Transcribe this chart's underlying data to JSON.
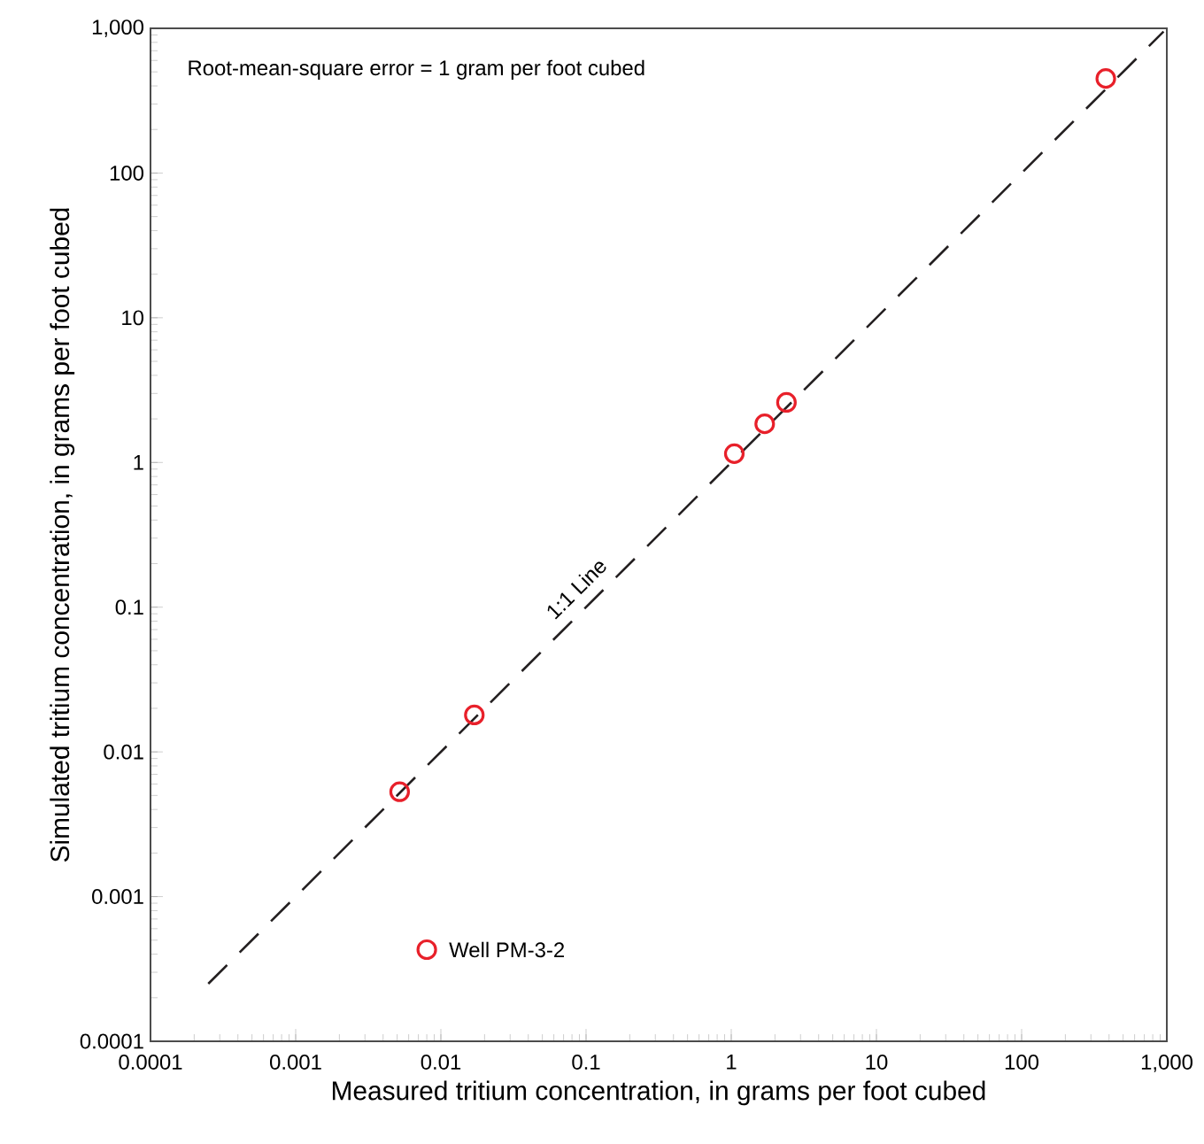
{
  "chart_data": {
    "type": "scatter",
    "xlabel": "Measured tritium concentration, in grams per foot cubed",
    "ylabel": "Simulated tritium concentration, in grams per foot cubed",
    "log": "xy",
    "marker": "circle",
    "grid": false,
    "xlim": [
      0.0001,
      1000
    ],
    "ylim": [
      0.0001,
      1000
    ],
    "xticks": [
      {
        "value": 0.0001,
        "label": "0.0001"
      },
      {
        "value": 0.001,
        "label": "0.001"
      },
      {
        "value": 0.01,
        "label": "0.01"
      },
      {
        "value": 0.1,
        "label": "0.1"
      },
      1,
      10,
      100,
      {
        "value": 1000,
        "label": "1,000"
      }
    ],
    "yticks": [
      {
        "value": 0.0001,
        "label": "0.0001"
      },
      {
        "value": 0.001,
        "label": "0.001"
      },
      {
        "value": 0.01,
        "label": "0.01"
      },
      {
        "value": 0.1,
        "label": "0.1"
      },
      1,
      10,
      100,
      {
        "value": 1000,
        "label": "1,000"
      }
    ],
    "series": [
      {
        "color": "#e8202a",
        "x": [
          0.0052,
          0.017,
          1.05,
          1.7,
          2.4,
          380,
          0.008
        ],
        "values": [
          0.0053,
          0.018,
          1.15,
          1.85,
          2.6,
          450,
          0.00043
        ]
      },
      {
        "type": "line",
        "name": "1:1 Line",
        "color": "#231f20",
        "line_style": "dashed",
        "marker": "none",
        "x": [
          0.00025,
          950
        ],
        "values": [
          0.00025,
          950
        ]
      }
    ],
    "annotations": [
      "Root-mean-square error = 1 gram per foot cubed",
      {
        "text": "Well PM-3-2",
        "x": 0.008,
        "y": 0.00043
      }
    ]
  }
}
